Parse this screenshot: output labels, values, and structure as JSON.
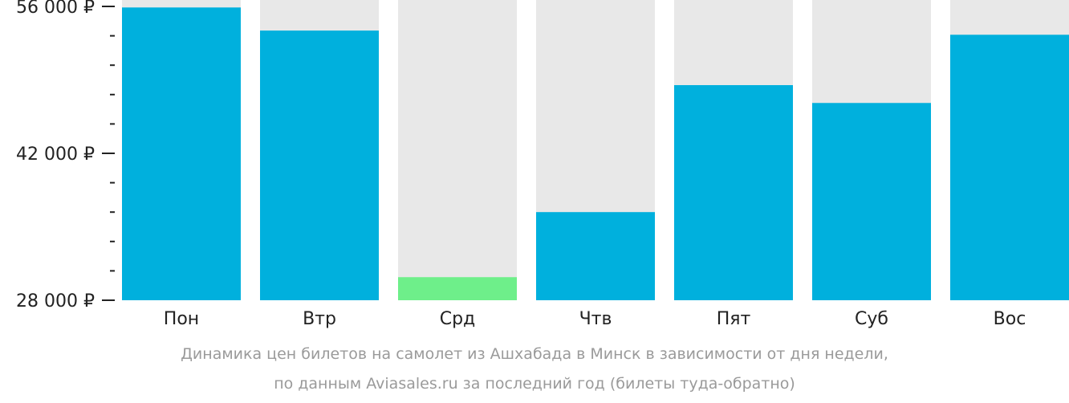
{
  "chart_data": {
    "type": "bar",
    "categories": [
      "Пон",
      "Втр",
      "Срд",
      "Чтв",
      "Пят",
      "Суб",
      "Вос"
    ],
    "values": [
      55900,
      53700,
      30200,
      36400,
      48500,
      46800,
      53300
    ],
    "ylim": [
      28000,
      56000
    ],
    "yticks": [
      {
        "value": 56000,
        "label": "56 000 ₽"
      },
      {
        "value": 42000,
        "label": "42 000 ₽"
      },
      {
        "value": 28000,
        "label": "28 000 ₽"
      }
    ],
    "minor_tick_step": 2800,
    "highlight_index": 2,
    "colors": {
      "bar": "#00b0dd",
      "bar_min": "#6eef8a",
      "bar_background": "#e8e8e8",
      "axis": "#222222",
      "caption": "#9a9a9a"
    },
    "caption": [
      "Динамика цен билетов на самолет из Ашхабада в Минск в зависимости от дня недели,",
      "по данным Aviasales.ru за последний год (билеты туда-обратно)"
    ]
  }
}
